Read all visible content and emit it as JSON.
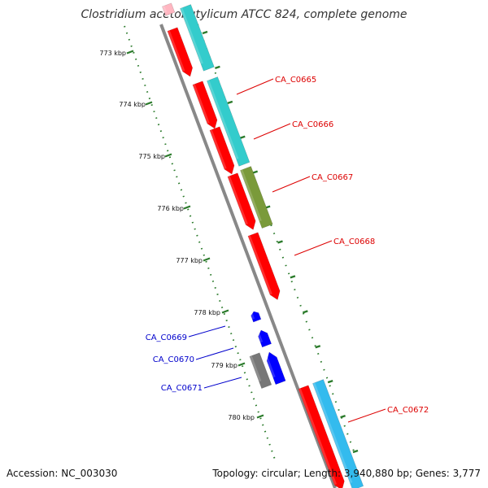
{
  "title": "Clostridium acetobutylicum ATCC 824, complete genome",
  "footer": {
    "accession": "Accession: NC_003030",
    "summary": "Topology: circular; Length: 3,940,880 bp; Genes: 3,777"
  },
  "ticks": [
    "773 kbp",
    "774 kbp",
    "775 kbp",
    "776 kbp",
    "777 kbp",
    "778 kbp",
    "779 kbp",
    "780 kbp"
  ],
  "gene_labels": {
    "forward": [
      "CA_C0665",
      "CA_C0666",
      "CA_C0667",
      "CA_C0668",
      "CA_C0672"
    ],
    "reverse": [
      "CA_C0669",
      "CA_C0670",
      "CA_C0671"
    ]
  },
  "colors": {
    "forward_label": "#dd0000",
    "reverse_label": "#0000cc",
    "cds_red": "#ff0000",
    "cds_cyan": "#33cccc",
    "cds_olive": "#7a9a3a",
    "cds_blue": "#0000ff",
    "cds_gray": "#777777",
    "cds_sky": "#33bbee",
    "cds_pink": "#ffb6c1",
    "backbone": "#888888",
    "tick_green": "#2a7a2a"
  }
}
